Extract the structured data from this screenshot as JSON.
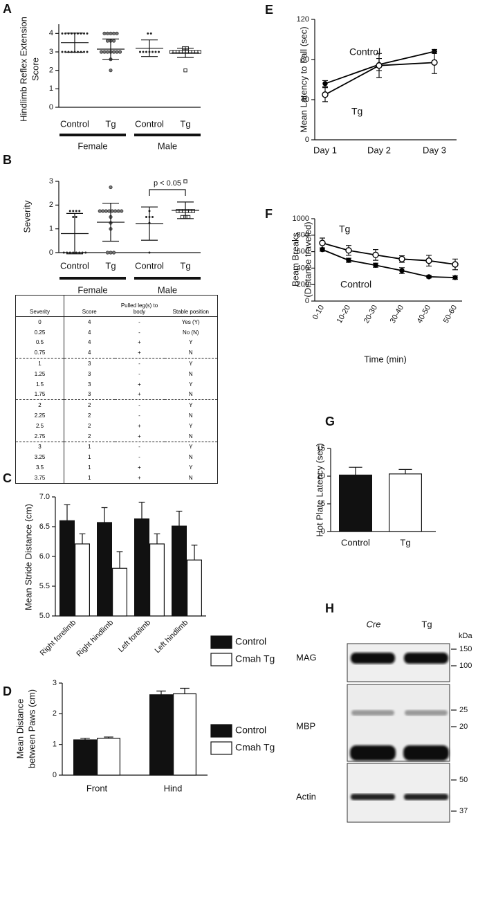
{
  "chart_data": [
    {
      "type": "dotplot",
      "label": "A",
      "ylabel": [
        "Hindlimb Reflex Extension",
        "Score"
      ],
      "ylim": [
        0,
        4.5
      ],
      "yticks": [
        0,
        1,
        2,
        3,
        4
      ],
      "groups": [
        {
          "name": "Female",
          "categories": [
            "Control",
            "Tg"
          ],
          "markers": [
            "dot",
            "circle"
          ],
          "points": [
            [
              4,
              4,
              4,
              4,
              4,
              4,
              4,
              4,
              4,
              3,
              3,
              3,
              3,
              3,
              3,
              3,
              3,
              3
            ],
            [
              4,
              4,
              4,
              4,
              4,
              3.6,
              3.6,
              3.6,
              3,
              3,
              3,
              3,
              3,
              3,
              3,
              2.6,
              2
            ]
          ],
          "mean": [
            3.5,
            3.15
          ],
          "sd": [
            0.52,
            0.55
          ]
        },
        {
          "name": "Male",
          "categories": [
            "Control",
            "Tg"
          ],
          "markers": [
            "dot",
            "square"
          ],
          "points": [
            [
              4,
              4,
              3,
              3,
              3,
              3,
              3,
              3,
              3
            ],
            [
              3.2,
              3.2,
              3,
              3,
              3,
              3,
              3,
              3,
              3,
              3,
              3,
              3,
              2
            ]
          ],
          "mean": [
            3.2,
            2.95
          ],
          "sd": [
            0.45,
            0.25
          ]
        }
      ]
    },
    {
      "type": "dotplot",
      "label": "B",
      "ylabel": [
        "Severity"
      ],
      "ylim": [
        0,
        3
      ],
      "yticks": [
        0,
        1,
        2,
        3
      ],
      "annotation": "p < 0.05",
      "groups": [
        {
          "name": "Female",
          "categories": [
            "Control",
            "Tg"
          ],
          "markers": [
            "dot",
            "circle"
          ],
          "points": [
            [
              1.75,
              1.75,
              1.75,
              1.75,
              1.5,
              1.5,
              0,
              0,
              0,
              0,
              0,
              0,
              0,
              0
            ],
            [
              2.75,
              1.75,
              1.75,
              1.75,
              1.75,
              1.75,
              1.75,
              1.75,
              1.75,
              1.5,
              1.25,
              1,
              0,
              0,
              0
            ]
          ],
          "mean": [
            0.8,
            1.28
          ],
          "sd": [
            0.85,
            0.8
          ]
        },
        {
          "name": "Male",
          "categories": [
            "Control",
            "Tg"
          ],
          "markers": [
            "dot",
            "square"
          ],
          "points": [
            [
              1.75,
              1.5,
              1.5,
              1.5,
              1.25,
              0
            ],
            [
              3,
              1.75,
              1.75,
              1.75,
              1.75,
              1.75,
              1.75,
              1.5,
              1.5,
              1.5
            ]
          ],
          "mean": [
            1.22,
            1.78
          ],
          "sd": [
            0.7,
            0.35
          ]
        }
      ]
    },
    {
      "type": "bar",
      "label": "C",
      "ylabel": [
        "Mean Stride Distance (cm)"
      ],
      "legend": "right",
      "categories": [
        "Right forelimb",
        "Right hindlimb",
        "Left forelimb",
        "Left hindlimb"
      ],
      "series": [
        {
          "name": "Control",
          "color": "#111111",
          "values": [
            6.6,
            6.57,
            6.63,
            6.51
          ],
          "errors": [
            0.27,
            0.25,
            0.28,
            0.25
          ]
        },
        {
          "name": "Cmah Tg",
          "color": "#ffffff",
          "values": [
            6.21,
            5.8,
            6.21,
            5.94
          ],
          "errors": [
            0.17,
            0.28,
            0.17,
            0.25
          ]
        }
      ],
      "ylim": [
        5,
        7
      ],
      "yticks": [
        {
          "value": 5,
          "label": "5.0"
        },
        {
          "value": 5.5,
          "label": "5.5"
        },
        {
          "value": 6,
          "label": "6.0"
        },
        {
          "value": 6.5,
          "label": "6.5"
        },
        {
          "value": 7,
          "label": "7.0"
        }
      ]
    },
    {
      "type": "bar",
      "label": "D",
      "ylabel": [
        "Mean Distance",
        "between Paws (cm)"
      ],
      "legend": "right",
      "categories": [
        "Front",
        "Hind"
      ],
      "series": [
        {
          "name": "Control",
          "color": "#111111",
          "values": [
            1.15,
            2.62
          ],
          "errors": [
            0.05,
            0.12
          ]
        },
        {
          "name": "Cmah Tg",
          "color": "#ffffff",
          "values": [
            1.2,
            2.65
          ],
          "errors": [
            0.04,
            0.18
          ]
        }
      ],
      "ylim": [
        0,
        3
      ],
      "yticks": [
        0,
        1,
        2,
        3
      ]
    },
    {
      "type": "line",
      "label": "E",
      "ylabel": [
        "Mean Latency to Fall (sec)"
      ],
      "categories": [
        "Day 1",
        "Day 2",
        "Day 3"
      ],
      "series": [
        {
          "name": "Control",
          "color": "#000000",
          "marker": "filled",
          "values": [
            56,
            75,
            88
          ],
          "errors": [
            3,
            6,
            2
          ]
        },
        {
          "name": "Tg",
          "color": "#000000",
          "marker": "open",
          "values": [
            45,
            74,
            77
          ],
          "errors": [
            7,
            12,
            11
          ]
        }
      ],
      "ylim": [
        0,
        120
      ],
      "yticks": [
        0,
        40,
        80,
        120
      ]
    },
    {
      "type": "line",
      "label": "F",
      "ylabel": [
        "Beam Breaks",
        "(Distance traveled)"
      ],
      "xlabel": "Time (min)",
      "categories": [
        "0-10",
        "10-20",
        "20-30",
        "30-40",
        "40-50",
        "50-60"
      ],
      "series": [
        {
          "name": "Tg",
          "color": "#000000",
          "marker": "open",
          "values": [
            705,
            615,
            560,
            510,
            490,
            445
          ],
          "errors": [
            60,
            60,
            65,
            40,
            65,
            65
          ]
        },
        {
          "name": "Control",
          "color": "#000000",
          "marker": "filled",
          "values": [
            625,
            495,
            435,
            370,
            295,
            285
          ],
          "errors": [
            20,
            25,
            25,
            35,
            15,
            20
          ]
        }
      ],
      "ylim": [
        0,
        1000
      ],
      "yticks": [
        0,
        200,
        400,
        600,
        800,
        1000
      ]
    },
    {
      "type": "bar",
      "label": "G",
      "ylabel": [
        "Hot Plate Latency (sec)"
      ],
      "categories": [
        "Control",
        "Tg"
      ],
      "values": [
        10.2,
        10.4
      ],
      "errors": [
        1.4,
        0.8
      ],
      "colors": [
        "#111111",
        "#ffffff"
      ],
      "ylim": [
        0,
        15
      ],
      "yticks": [
        0,
        5,
        10,
        15
      ]
    }
  ],
  "table": {
    "header": [
      "Severity",
      "Score",
      "Pulled leg(s) to body",
      "Stable position"
    ],
    "rows": [
      [
        "0",
        "4",
        "-",
        "Yes (Y)"
      ],
      [
        "0.25",
        "4",
        "-",
        "No (N)"
      ],
      [
        "0.5",
        "4",
        "+",
        "Y"
      ],
      [
        "0.75",
        "4",
        "+",
        "N"
      ],
      [
        "1",
        "3",
        "-",
        "Y"
      ],
      [
        "1.25",
        "3",
        "-",
        "N"
      ],
      [
        "1.5",
        "3",
        "+",
        "Y"
      ],
      [
        "1.75",
        "3",
        "+",
        "N"
      ],
      [
        "2",
        "2",
        "-",
        "Y"
      ],
      [
        "2.25",
        "2",
        "-",
        "N"
      ],
      [
        "2.5",
        "2",
        "+",
        "Y"
      ],
      [
        "2.75",
        "2",
        "+",
        "N"
      ],
      [
        "3",
        "1",
        "-",
        "Y"
      ],
      [
        "3.25",
        "1",
        "-",
        "N"
      ],
      [
        "3.5",
        "1",
        "+",
        "Y"
      ],
      [
        "3.75",
        "1",
        "+",
        "N"
      ]
    ]
  },
  "blot": {
    "label": "H",
    "columns": [
      "Cre",
      "Tg"
    ],
    "unit": "kDa",
    "rows": [
      {
        "name": "MAG",
        "markers": [
          150,
          100
        ]
      },
      {
        "name": "MBP",
        "markers": [
          25,
          20
        ]
      },
      {
        "name": "Actin",
        "markers": [
          50,
          37
        ]
      }
    ]
  }
}
